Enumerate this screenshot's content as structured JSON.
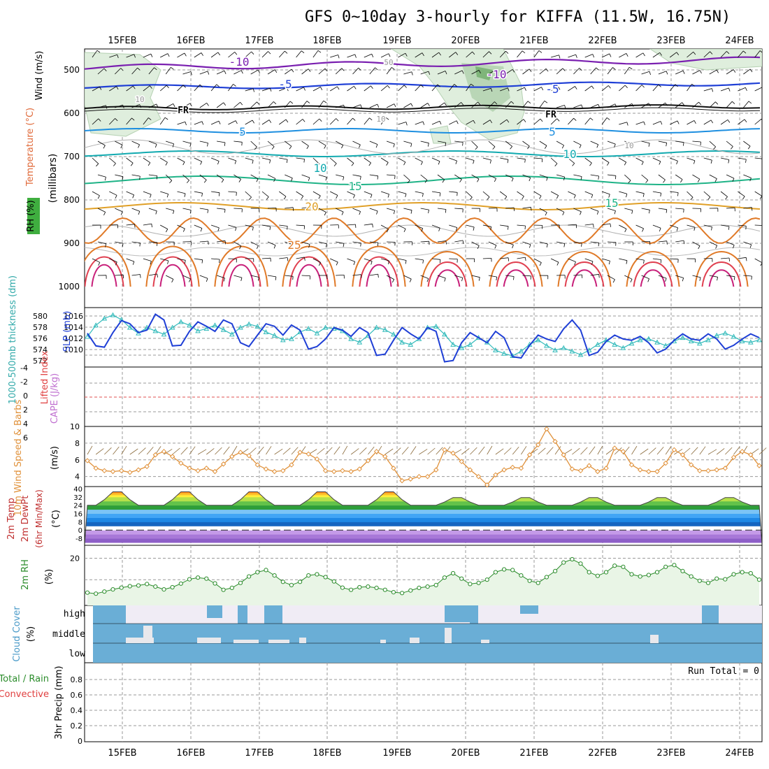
{
  "title": "GFS 0~10day 3-hourly for KIFFA (11.5W, 16.75N)",
  "colors": {
    "grid": "#9a9a9a",
    "slp": "#1f3fd6",
    "thickness": "#33bbbb",
    "wind10m": "#e0913a",
    "rh2m": "#2b8c2b",
    "rh_fill": "#e9f5e6",
    "cloud": "#6aaed6",
    "cloud_gap": "#f0ecf5",
    "li_zero": "#e05050",
    "temp_low": "#8a5ec8"
  },
  "dates": [
    "15FEB",
    "16FEB",
    "17FEB",
    "18FEB",
    "19FEB",
    "20FEB",
    "21FEB",
    "22FEB",
    "23FEB",
    "24FEB"
  ],
  "panels": {
    "upper": {
      "ylabel_wind": "Wind (m/s)",
      "ylabel_temp": "Temperature (°C)",
      "ylabel_rh": "RH (%)",
      "ylabel_pressure": "(millibars)",
      "pressure_ticks": [
        "500",
        "600",
        "700",
        "800",
        "900",
        "1000"
      ],
      "contour_labels": [
        "-10",
        "-10",
        "-5",
        "-5",
        "FR",
        "FR",
        "5",
        "5",
        "10",
        "10",
        "15",
        "15",
        "20",
        "25",
        "10",
        "10",
        "10",
        "50"
      ]
    },
    "slp": {
      "ylabel_thickness": "1000-500mb thickness (dm)",
      "ylabel_slp": "SLP (mb)",
      "ticks_left": [
        "580",
        "578",
        "576",
        "574",
        "572"
      ],
      "ticks_right": [
        "1016",
        "1014",
        "1012",
        "1010"
      ]
    },
    "cape": {
      "ylabel_li": "Lifted Index",
      "ylabel_cape": "CAPE (J/kg)",
      "ticks": [
        "-4",
        "-2",
        "0",
        "2",
        "4",
        "6"
      ]
    },
    "wind10m": {
      "ylabel": "10m Wind Speed & Barbs",
      "unit": "(m/s)",
      "ticks": [
        "10",
        "8",
        "6",
        "4"
      ]
    },
    "temp2m": {
      "ylabel1": "2m Temp",
      "ylabel2": "2m DewPt",
      "ylabel3": "(6hr Min/Max)",
      "unit": "(°C)",
      "ticks": [
        "40",
        "32",
        "24",
        "16",
        "8",
        "0",
        "-8"
      ]
    },
    "rh2m": {
      "ylabel": "2m RH",
      "unit": "(%)",
      "ticks": [
        "20"
      ]
    },
    "cloud": {
      "ylabel": "Cloud Cover",
      "unit": "(%)",
      "levels": [
        "high",
        "middle",
        "low"
      ]
    },
    "precip": {
      "ylabel1": "Total / Rain",
      "ylabel2": "Convective",
      "ylabel3": "3hr Precip (mm)",
      "ticks": [
        "0.8",
        "0.6",
        "0.4",
        "0.2",
        "0"
      ],
      "run_total_label": "Run Total = 0"
    }
  },
  "chart_data": [
    {
      "type": "line",
      "title": "SLP & 1000-500mb thickness",
      "x": [
        0,
        1,
        2,
        3,
        4,
        5,
        6,
        7,
        8,
        9,
        10,
        11,
        12,
        13,
        14,
        15,
        16,
        17,
        18,
        19,
        20,
        21,
        22,
        23,
        24,
        25,
        26,
        27,
        28,
        29,
        30,
        31,
        32,
        33,
        34,
        35,
        36,
        37,
        38,
        39,
        40,
        41,
        42,
        43,
        44,
        45,
        46,
        47,
        48,
        49,
        50,
        51,
        52,
        53,
        54,
        55,
        56,
        57,
        58,
        59,
        60,
        61,
        62,
        63,
        64,
        65,
        66,
        67,
        68,
        69,
        70,
        71,
        72,
        73,
        74,
        75,
        76,
        77,
        78,
        79
      ],
      "series": [
        {
          "name": "SLP (mb)",
          "axis": "right",
          "ylim": [
            1008.5,
            1017
          ],
          "values": [
            1013.5,
            1011.5,
            1011.3,
            1013.6,
            1015.5,
            1015.0,
            1013.6,
            1014.0,
            1016.5,
            1015.6,
            1011.5,
            1011.6,
            1013.8,
            1015.3,
            1014.6,
            1013.8,
            1015.6,
            1015.0,
            1012.0,
            1011.4,
            1013.2,
            1015.0,
            1014.6,
            1013.2,
            1014.8,
            1014.0,
            1011.0,
            1011.4,
            1012.6,
            1014.4,
            1014.0,
            1013.0,
            1014.4,
            1013.6,
            1010.0,
            1010.2,
            1012.4,
            1014.4,
            1013.4,
            1012.6,
            1014.4,
            1013.8,
            1009.0,
            1009.2,
            1012.0,
            1013.6,
            1012.8,
            1012.0,
            1013.8,
            1012.8,
            1009.8,
            1009.6,
            1011.6,
            1013.2,
            1012.6,
            1012.2,
            1014.2,
            1015.6,
            1014.0,
            1010.0,
            1010.5,
            1012.2,
            1013.2,
            1012.6,
            1012.4,
            1013.0,
            1012.0,
            1010.4,
            1011.0,
            1012.4,
            1013.4,
            1012.6,
            1012.4,
            1013.4,
            1012.6,
            1011.0,
            1011.6,
            1012.6,
            1013.4,
            1012.8
          ]
        },
        {
          "name": "1000-500mb thickness (dm)",
          "axis": "left",
          "ylim": [
            572,
            581.5
          ],
          "values": [
            577.0,
            579.0,
            580.2,
            580.8,
            580.0,
            578.6,
            577.6,
            578.6,
            578.0,
            577.4,
            578.6,
            579.6,
            579.0,
            578.0,
            578.4,
            579.0,
            578.2,
            577.4,
            578.6,
            579.2,
            578.8,
            577.8,
            577.2,
            576.4,
            576.6,
            577.8,
            578.4,
            577.6,
            578.6,
            578.4,
            578.0,
            576.6,
            576.0,
            577.2,
            578.6,
            578.2,
            577.4,
            576.0,
            575.6,
            576.6,
            578.6,
            578.8,
            577.4,
            575.6,
            575.0,
            575.6,
            576.8,
            576.0,
            574.6,
            574.0,
            573.6,
            574.4,
            575.6,
            576.4,
            575.4,
            574.6,
            575.0,
            574.4,
            573.8,
            574.6,
            575.6,
            576.4,
            575.6,
            575.0,
            575.8,
            576.4,
            576.6,
            576.0,
            575.4,
            576.2,
            576.8,
            576.2,
            575.8,
            576.4,
            577.2,
            577.6,
            577.0,
            576.2,
            576.0,
            576.4
          ]
        }
      ]
    },
    {
      "type": "line",
      "title": "10m Wind Speed",
      "ylabel": "(m/s)",
      "ylim": [
        2.8,
        10
      ],
      "values": [
        5.9,
        5.0,
        4.7,
        4.6,
        4.7,
        4.5,
        4.8,
        5.2,
        6.6,
        7.0,
        6.4,
        5.6,
        5.0,
        4.7,
        5.0,
        4.6,
        5.5,
        6.4,
        6.9,
        6.5,
        5.4,
        4.9,
        4.6,
        4.7,
        5.4,
        6.9,
        6.7,
        6.1,
        4.7,
        4.6,
        4.7,
        4.6,
        4.9,
        5.9,
        7.0,
        6.4,
        5.0,
        3.5,
        3.7,
        4.0,
        4.0,
        4.8,
        7.2,
        6.8,
        5.8,
        4.8,
        4.0,
        3.0,
        4.2,
        4.8,
        5.1,
        5.0,
        6.6,
        7.8,
        9.7,
        8.2,
        6.6,
        4.9,
        4.7,
        5.3,
        4.6,
        5.0,
        7.4,
        7.0,
        5.4,
        4.8,
        4.6,
        4.6,
        5.6,
        7.2,
        6.6,
        5.4,
        4.7,
        4.7,
        4.8,
        5.0,
        6.3,
        7.0,
        6.6,
        5.3
      ]
    },
    {
      "type": "line",
      "title": "2m RH",
      "ylabel": "(%)",
      "ylim": [
        0,
        26
      ],
      "values": [
        4.0,
        3.5,
        4.5,
        5.5,
        6.3,
        7.0,
        7.3,
        8.0,
        6.8,
        5.5,
        6.5,
        8.2,
        10.2,
        11.0,
        10.5,
        8.3,
        5.3,
        6.2,
        8.5,
        11.5,
        13.5,
        14.5,
        12.0,
        9.0,
        7.5,
        9.0,
        12.0,
        12.5,
        11.2,
        9.2,
        6.3,
        5.3,
        6.5,
        6.8,
        6.2,
        5.3,
        4.2,
        3.8,
        5.0,
        6.2,
        6.8,
        7.5,
        11.0,
        13.0,
        10.5,
        8.0,
        8.5,
        10.0,
        13.5,
        14.8,
        14.5,
        12.0,
        9.5,
        8.5,
        11.2,
        14.0,
        18.0,
        19.5,
        17.5,
        13.5,
        11.8,
        13.5,
        16.5,
        16.0,
        12.5,
        11.5,
        12.2,
        13.5,
        16.0,
        16.8,
        14.0,
        11.5,
        9.5,
        8.5,
        10.5,
        10.2,
        12.5,
        13.5,
        13.0,
        10.0
      ]
    }
  ]
}
